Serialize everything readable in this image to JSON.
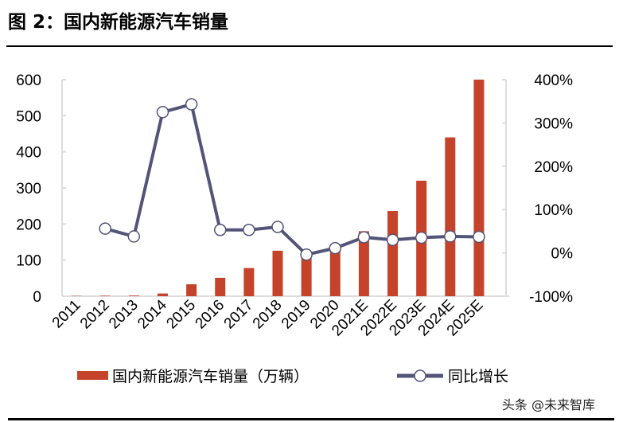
{
  "title": "图 2：国内新能源汽车销量",
  "watermark": "头条 @未来智库",
  "colors": {
    "bar": "#c5432a",
    "line": "#545478",
    "marker_fill": "#ffffff"
  },
  "chart_data": {
    "type": "bar+line",
    "categories": [
      "2011",
      "2012",
      "2013",
      "2014",
      "2015",
      "2016",
      "2017",
      "2018",
      "2019",
      "2020",
      "2021E",
      "2022E",
      "2023E",
      "2024E",
      "2025E"
    ],
    "series": [
      {
        "name": "国内新能源汽车销量（万辆）",
        "type": "bar",
        "axis": "left",
        "values": [
          0.8,
          1.3,
          1.8,
          7.5,
          33,
          51,
          78,
          126,
          121,
          137,
          180,
          236,
          320,
          440,
          600
        ]
      },
      {
        "name": "同比增长",
        "type": "line",
        "axis": "right",
        "unit": "%",
        "values": [
          null,
          56,
          38,
          325,
          343,
          53,
          53,
          60,
          -4,
          11,
          36,
          30,
          35,
          38,
          37
        ]
      }
    ],
    "left_axis": {
      "ylim": [
        0,
        600
      ],
      "ticks": [
        "0",
        "100",
        "200",
        "300",
        "400",
        "500",
        "600"
      ]
    },
    "right_axis": {
      "ylim": [
        -100,
        400
      ],
      "ticks": [
        "-100%",
        "0%",
        "100%",
        "200%",
        "300%",
        "400%"
      ]
    },
    "grid": false,
    "legend_position": "bottom"
  }
}
